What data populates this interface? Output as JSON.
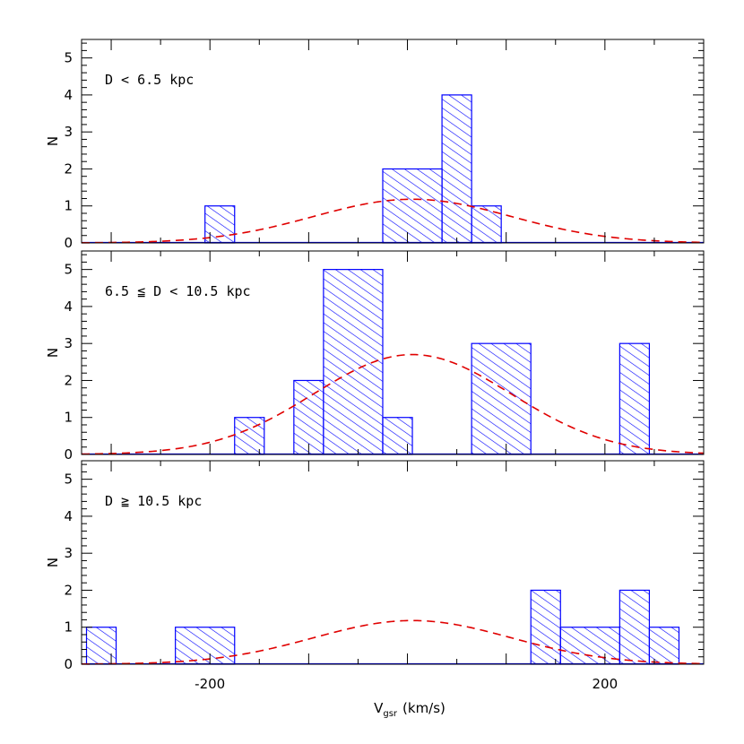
{
  "chart_data": {
    "type": "bar",
    "xlabel_main": "V",
    "xlabel_sub": "gsr",
    "xlabel_units": "(km/s)",
    "xlim": [
      -330,
      300
    ],
    "x_ticks": [
      -200,
      0,
      200
    ],
    "x_tick_labels": [
      "-200",
      "",
      "200"
    ],
    "colors": {
      "histogram": "#0000ff",
      "fit": "#e00000"
    },
    "panels": [
      {
        "annotation": "D  < 6.5 kpc",
        "ylabel": "N",
        "ylim": [
          0,
          5.5
        ],
        "y_ticks": [
          "0",
          "1",
          "2",
          "3",
          "4",
          "5"
        ],
        "bins": [
          {
            "x0": -205,
            "x1": -175,
            "count": 1
          },
          {
            "x0": -25,
            "x1": 35,
            "count": 2
          },
          {
            "x0": 35,
            "x1": 65,
            "count": 4
          },
          {
            "x0": 65,
            "x1": 95,
            "count": 1
          }
        ],
        "fit": {
          "amplitude": 1.18,
          "mean": 5,
          "sigma": 100
        }
      },
      {
        "annotation": "6.5 ≦ D < 10.5 kpc",
        "ylabel": "N",
        "ylim": [
          0,
          5.5
        ],
        "y_ticks": [
          "0",
          "1",
          "2",
          "3",
          "4",
          "5"
        ],
        "bins": [
          {
            "x0": -175,
            "x1": -145,
            "count": 1
          },
          {
            "x0": -115,
            "x1": -85,
            "count": 2
          },
          {
            "x0": -85,
            "x1": -25,
            "count": 5
          },
          {
            "x0": -25,
            "x1": 5,
            "count": 1
          },
          {
            "x0": 65,
            "x1": 125,
            "count": 3
          },
          {
            "x0": 215,
            "x1": 245,
            "count": 3
          }
        ],
        "fit": {
          "amplitude": 2.7,
          "mean": 5,
          "sigma": 100
        }
      },
      {
        "annotation": "D ≧ 10.5 kpc",
        "ylabel": "N",
        "ylim": [
          0,
          5.5
        ],
        "y_ticks": [
          "0",
          "1",
          "2",
          "3",
          "4",
          "5"
        ],
        "bins": [
          {
            "x0": -325,
            "x1": -295,
            "count": 1
          },
          {
            "x0": -235,
            "x1": -175,
            "count": 1
          },
          {
            "x0": 125,
            "x1": 155,
            "count": 2
          },
          {
            "x0": 155,
            "x1": 215,
            "count": 1
          },
          {
            "x0": 215,
            "x1": 245,
            "count": 2
          },
          {
            "x0": 245,
            "x1": 275,
            "count": 1
          }
        ],
        "fit": {
          "amplitude": 1.18,
          "mean": 5,
          "sigma": 100
        }
      }
    ]
  }
}
